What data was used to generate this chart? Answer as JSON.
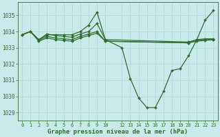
{
  "title": "Graphe pression niveau de la mer (hPa)",
  "bg_color": "#c8eaea",
  "grid_color": "#b0d8d8",
  "line_color": "#2d6e2d",
  "marker_color": "#2d6e2d",
  "ylim": [
    1028.5,
    1035.8
  ],
  "yticks": [
    1029,
    1030,
    1031,
    1032,
    1033,
    1034,
    1035
  ],
  "xlim": [
    -0.5,
    23.5
  ],
  "xtick_labels": [
    "0",
    "1",
    "2",
    "3",
    "4",
    "5",
    "6",
    "7",
    "8",
    "9",
    "10",
    "12",
    "13",
    "14",
    "15",
    "16",
    "17",
    "18",
    "19",
    "20",
    "21",
    "22",
    "23"
  ],
  "xtick_positions": [
    0,
    1,
    2,
    3,
    4,
    5,
    6,
    7,
    8,
    9,
    10,
    12,
    13,
    14,
    15,
    16,
    17,
    18,
    19,
    20,
    21,
    22,
    23
  ],
  "series": [
    {
      "x": [
        0,
        1,
        2,
        3,
        4,
        5,
        6,
        7,
        8,
        9,
        10,
        12,
        13,
        14,
        15,
        16,
        17,
        18,
        19,
        20,
        21,
        22,
        23
      ],
      "y": [
        1033.8,
        1034.0,
        1033.5,
        1033.8,
        1033.8,
        1033.8,
        1033.8,
        1034.0,
        1034.4,
        1035.2,
        1033.5,
        1033.0,
        1031.1,
        1029.9,
        1029.3,
        1029.3,
        1030.3,
        1031.6,
        1031.7,
        1032.5,
        1033.5,
        1034.7,
        1035.3
      ]
    },
    {
      "x": [
        0,
        1,
        2,
        3,
        4,
        5,
        6,
        7,
        8,
        9,
        10,
        20,
        21,
        22,
        23
      ],
      "y": [
        1033.8,
        1034.0,
        1033.5,
        1033.85,
        1033.75,
        1033.7,
        1033.65,
        1033.85,
        1034.0,
        1034.5,
        1033.5,
        1033.35,
        1033.5,
        1033.55,
        1033.55
      ]
    },
    {
      "x": [
        0,
        1,
        2,
        3,
        4,
        5,
        6,
        7,
        8,
        9,
        10,
        20,
        21,
        22,
        23
      ],
      "y": [
        1033.8,
        1034.0,
        1033.45,
        1033.7,
        1033.6,
        1033.55,
        1033.5,
        1033.7,
        1033.85,
        1034.0,
        1033.4,
        1033.3,
        1033.45,
        1033.5,
        1033.5
      ]
    },
    {
      "x": [
        0,
        1,
        2,
        3,
        4,
        5,
        6,
        7,
        8,
        9,
        10,
        20,
        21,
        22,
        23
      ],
      "y": [
        1033.8,
        1034.0,
        1033.4,
        1033.6,
        1033.5,
        1033.45,
        1033.4,
        1033.6,
        1033.75,
        1033.9,
        1033.4,
        1033.3,
        1033.4,
        1033.45,
        1033.5
      ]
    }
  ]
}
